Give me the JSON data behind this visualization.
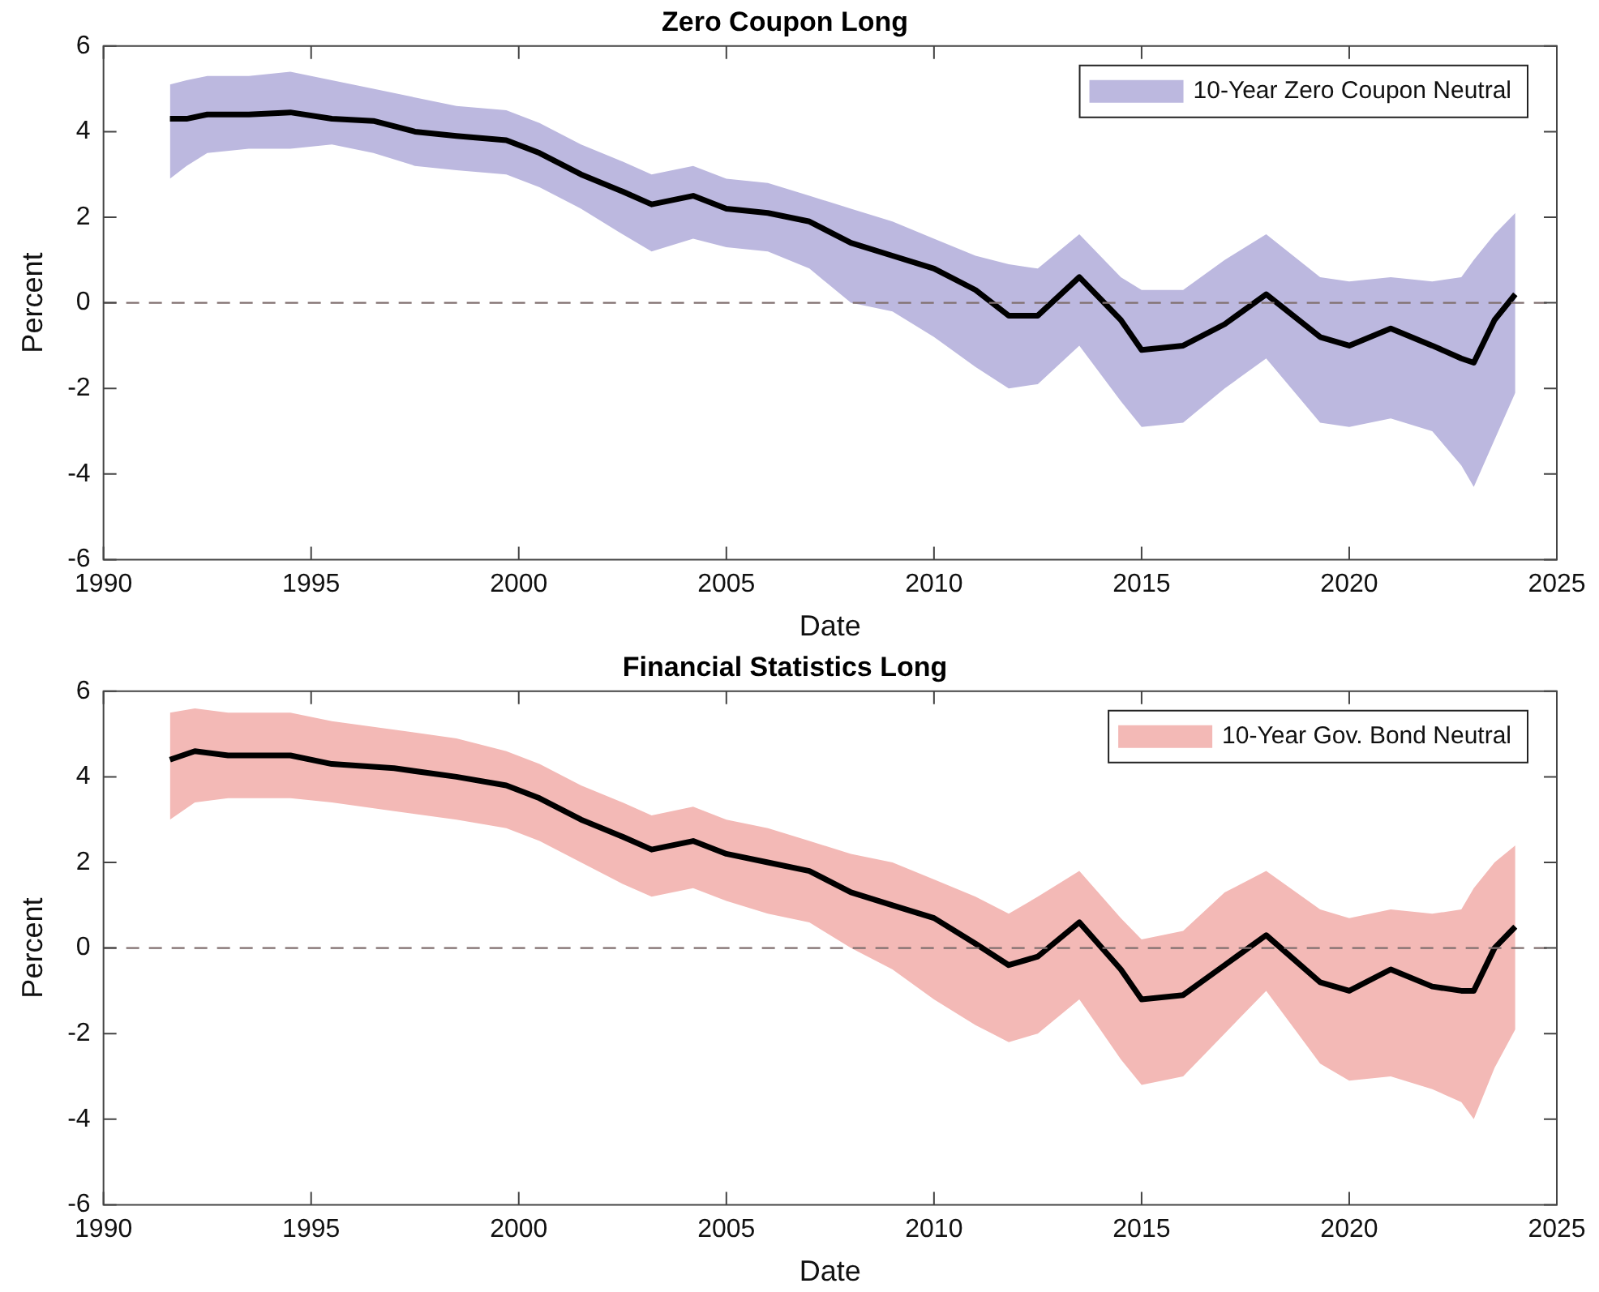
{
  "chart_data": [
    {
      "type": "line",
      "title": "Zero Coupon Long",
      "xlabel": "Date",
      "ylabel": "Percent",
      "xlim": [
        1990,
        2025
      ],
      "xticks": [
        1990,
        1995,
        2000,
        2005,
        2010,
        2015,
        2020,
        2025
      ],
      "ylim": [
        -6,
        6
      ],
      "yticks": [
        -6,
        -4,
        -2,
        0,
        2,
        4,
        6
      ],
      "grid": false,
      "legend": "top right",
      "marker": "none",
      "x": [
        1991.6,
        1992,
        1992.5,
        1993.5,
        1994.5,
        1995.5,
        1996.5,
        1997.5,
        1998.5,
        1999.7,
        2000.5,
        2001.5,
        2002.5,
        2003.2,
        2004.2,
        2005,
        2006,
        2007,
        2008,
        2009,
        2010,
        2011,
        2011.8,
        2012.5,
        2013.5,
        2014.5,
        2015,
        2016,
        2017,
        2018,
        2019.3,
        2020,
        2021,
        2022,
        2022.7,
        2023,
        2023.5,
        2024
      ],
      "series": [
        {
          "type": "line",
          "name": "10-Year Zero Coupon Neutral",
          "color": "#bcb8df",
          "values": [
            null,
            null,
            null,
            null,
            null,
            null,
            null,
            null,
            null,
            null,
            null,
            null,
            null,
            null,
            null,
            null,
            null,
            null,
            null,
            null,
            null,
            null,
            null,
            null,
            null,
            null,
            null,
            null,
            null,
            null,
            null,
            null,
            null,
            null,
            null,
            null,
            null,
            null
          ],
          "lower": [
            2.9,
            3.2,
            3.5,
            3.6,
            3.6,
            3.7,
            3.5,
            3.2,
            3.1,
            3.0,
            2.7,
            2.2,
            1.6,
            1.2,
            1.5,
            1.3,
            1.2,
            0.8,
            0.0,
            -0.2,
            -0.8,
            -1.5,
            -2.0,
            -1.9,
            -1.0,
            -2.3,
            -2.9,
            -2.8,
            -2.0,
            -1.3,
            -2.8,
            -2.9,
            -2.7,
            -3.0,
            -3.8,
            -4.3,
            -3.2,
            -2.1
          ],
          "upper": [
            5.1,
            5.2,
            5.3,
            5.3,
            5.4,
            5.2,
            5.0,
            4.8,
            4.6,
            4.5,
            4.2,
            3.7,
            3.3,
            3.0,
            3.2,
            2.9,
            2.8,
            2.5,
            2.2,
            1.9,
            1.5,
            1.1,
            0.9,
            0.8,
            1.6,
            0.6,
            0.3,
            0.3,
            1.0,
            1.6,
            0.6,
            0.5,
            0.6,
            0.5,
            0.6,
            1.0,
            1.6,
            2.1
          ]
        },
        {
          "type": "line",
          "color": "#000000",
          "line_style": "solid",
          "values": [
            4.3,
            4.3,
            4.4,
            4.4,
            4.45,
            4.3,
            4.25,
            4.0,
            3.9,
            3.8,
            3.5,
            3.0,
            2.6,
            2.3,
            2.5,
            2.2,
            2.1,
            1.9,
            1.4,
            1.1,
            0.8,
            0.3,
            -0.3,
            -0.3,
            0.6,
            -0.4,
            -1.1,
            -1.0,
            -0.5,
            0.2,
            -0.8,
            -1.0,
            -0.6,
            -1.0,
            -1.3,
            -1.4,
            -0.4,
            0.2
          ]
        }
      ],
      "ref_lines": [
        {
          "axis": "y",
          "value": 0,
          "label": null,
          "color": "#806f6f",
          "line_style": "dashed"
        }
      ]
    },
    {
      "type": "line",
      "title": "Financial Statistics Long",
      "xlabel": "Date",
      "ylabel": "Percent",
      "xlim": [
        1990,
        2025
      ],
      "xticks": [
        1990,
        1995,
        2000,
        2005,
        2010,
        2015,
        2020,
        2025
      ],
      "ylim": [
        -6,
        6
      ],
      "yticks": [
        -6,
        -4,
        -2,
        0,
        2,
        4,
        6
      ],
      "grid": false,
      "legend": "top right",
      "marker": "none",
      "x": [
        1991.6,
        1992.2,
        1993,
        1994.5,
        1995.5,
        1997,
        1998.5,
        1999.7,
        2000.5,
        2001.5,
        2002.5,
        2003.2,
        2004.2,
        2005,
        2006,
        2007,
        2008,
        2009,
        2010,
        2011,
        2011.8,
        2012.5,
        2013.5,
        2014.5,
        2015,
        2016,
        2017,
        2018,
        2019.3,
        2020,
        2021,
        2022,
        2022.7,
        2023,
        2023.5,
        2024
      ],
      "series": [
        {
          "type": "line",
          "name": "10-Year Gov. Bond Neutral",
          "color": "#f3b9b6",
          "values": [
            null,
            null,
            null,
            null,
            null,
            null,
            null,
            null,
            null,
            null,
            null,
            null,
            null,
            null,
            null,
            null,
            null,
            null,
            null,
            null,
            null,
            null,
            null,
            null,
            null,
            null,
            null,
            null,
            null,
            null,
            null,
            null,
            null,
            null,
            null,
            null
          ],
          "lower": [
            3.0,
            3.4,
            3.5,
            3.5,
            3.4,
            3.2,
            3.0,
            2.8,
            2.5,
            2.0,
            1.5,
            1.2,
            1.4,
            1.1,
            0.8,
            0.6,
            0.0,
            -0.5,
            -1.2,
            -1.8,
            -2.2,
            -2.0,
            -1.2,
            -2.6,
            -3.2,
            -3.0,
            -2.0,
            -1.0,
            -2.7,
            -3.1,
            -3.0,
            -3.3,
            -3.6,
            -4.0,
            -2.8,
            -1.9
          ],
          "upper": [
            5.5,
            5.6,
            5.5,
            5.5,
            5.3,
            5.1,
            4.9,
            4.6,
            4.3,
            3.8,
            3.4,
            3.1,
            3.3,
            3.0,
            2.8,
            2.5,
            2.2,
            2.0,
            1.6,
            1.2,
            0.8,
            1.2,
            1.8,
            0.7,
            0.2,
            0.4,
            1.3,
            1.8,
            0.9,
            0.7,
            0.9,
            0.8,
            0.9,
            1.4,
            2.0,
            2.4
          ]
        },
        {
          "type": "line",
          "color": "#000000",
          "line_style": "solid",
          "values": [
            4.4,
            4.6,
            4.5,
            4.5,
            4.3,
            4.2,
            4.0,
            3.8,
            3.5,
            3.0,
            2.6,
            2.3,
            2.5,
            2.2,
            2.0,
            1.8,
            1.3,
            1.0,
            0.7,
            0.1,
            -0.4,
            -0.2,
            0.6,
            -0.5,
            -1.2,
            -1.1,
            -0.4,
            0.3,
            -0.8,
            -1.0,
            -0.5,
            -0.9,
            -1.0,
            -1.0,
            0.0,
            0.5
          ]
        }
      ],
      "ref_lines": [
        {
          "axis": "y",
          "value": 0,
          "label": null,
          "color": "#806f6f",
          "line_style": "dashed"
        }
      ]
    }
  ]
}
